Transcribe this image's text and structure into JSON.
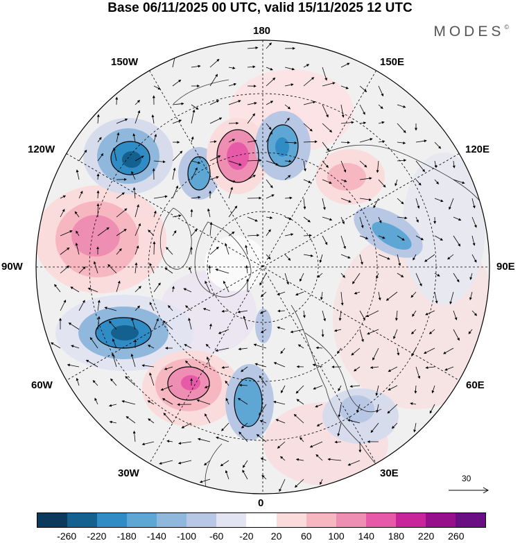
{
  "title": "Base 06/11/2025 00 UTC, valid 15/11/2025 12 UTC",
  "brand": "MODES",
  "brand_mark": "©",
  "longitudes": {
    "top": "180",
    "top_right": "150E",
    "upper_right": "120E",
    "right": "90E",
    "lower_right": "60E",
    "bottom_right": "30E",
    "bottom": "0",
    "bottom_left": "30W",
    "lower_left": "60W",
    "left": "90W",
    "upper_left": "120W",
    "top_left": "150W"
  },
  "reference_vector": {
    "label": "30"
  },
  "colorbar": {
    "colors": [
      "#0b3a5c",
      "#14608f",
      "#2f8cc4",
      "#5ea7d4",
      "#8fb8dc",
      "#b8c7e3",
      "#e3e4f2",
      "#ffffff",
      "#fbdcdc",
      "#f6b7c1",
      "#ef8eb3",
      "#e65aa8",
      "#c8259a",
      "#96108c",
      "#6a0f83"
    ],
    "tick_labels": [
      "-260",
      "-220",
      "-180",
      "-140",
      "-100",
      "-60",
      "-20",
      "20",
      "60",
      "100",
      "140",
      "180",
      "220",
      "260"
    ]
  }
}
